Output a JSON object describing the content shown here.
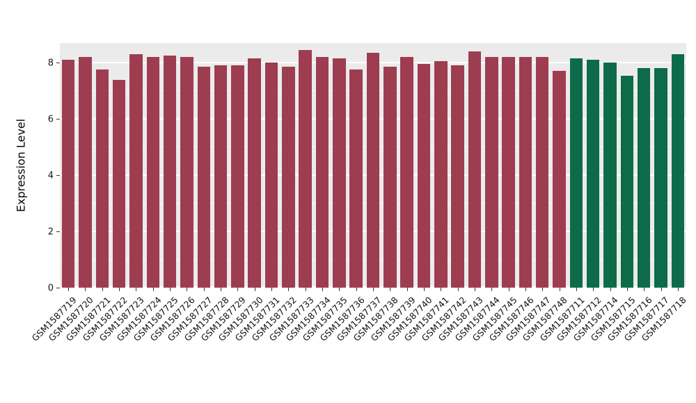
{
  "figure": {
    "background": "#ffffff",
    "panel_background": "#ebebeb",
    "grid_color": "#ffffff"
  },
  "chart_data": {
    "type": "bar",
    "title": "",
    "xlabel": "",
    "ylabel": "Expression Level",
    "ylim": [
      0,
      8.7
    ],
    "ytick_labels": [
      "0",
      "2",
      "4",
      "6",
      "8"
    ],
    "ytick_values": [
      0,
      2,
      4,
      6,
      8
    ],
    "minor_grid_values": [
      1,
      3,
      5,
      7
    ],
    "grid": true,
    "legend_position": "none",
    "categories": [
      "GSM1587719",
      "GSM1587720",
      "GSM1587721",
      "GSM1587722",
      "GSM1587723",
      "GSM1587724",
      "GSM1587725",
      "GSM1587726",
      "GSM1587727",
      "GSM1587728",
      "GSM1587729",
      "GSM1587730",
      "GSM1587731",
      "GSM1587732",
      "GSM1587733",
      "GSM1587734",
      "GSM1587735",
      "GSM1587736",
      "GSM1587737",
      "GSM1587738",
      "GSM1587739",
      "GSM1587740",
      "GSM1587741",
      "GSM1587742",
      "GSM1587743",
      "GSM1587744",
      "GSM1587745",
      "GSM1587746",
      "GSM1587747",
      "GSM1587748",
      "GSM1587711",
      "GSM1587712",
      "GSM1587714",
      "GSM1587715",
      "GSM1587716",
      "GSM1587717",
      "GSM1587718"
    ],
    "values": [
      8.1,
      8.2,
      7.75,
      7.4,
      8.3,
      8.2,
      8.25,
      8.2,
      7.85,
      7.9,
      7.9,
      8.15,
      8.0,
      7.85,
      8.45,
      8.2,
      8.15,
      7.75,
      8.35,
      7.85,
      8.2,
      7.95,
      8.05,
      7.9,
      8.4,
      8.2,
      8.2,
      8.2,
      8.2,
      7.7,
      8.15,
      8.1,
      8.0,
      7.55,
      7.8,
      7.8,
      8.3
    ],
    "groups": [
      0,
      0,
      0,
      0,
      0,
      0,
      0,
      0,
      0,
      0,
      0,
      0,
      0,
      0,
      0,
      0,
      0,
      0,
      0,
      0,
      0,
      0,
      0,
      0,
      0,
      0,
      0,
      0,
      0,
      0,
      1,
      1,
      1,
      1,
      1,
      1,
      1
    ],
    "group_colors": [
      "#9e3d50",
      "#0e6b4a"
    ]
  }
}
